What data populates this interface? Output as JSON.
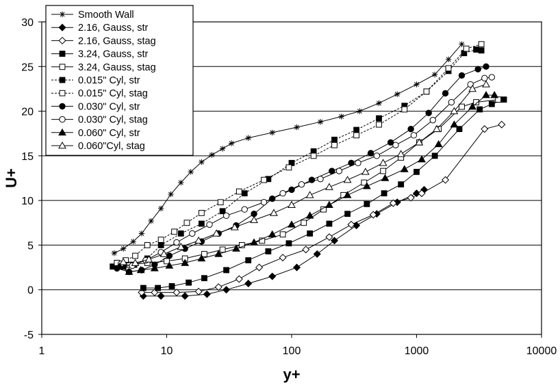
{
  "chart_data": {
    "type": "scatter",
    "title": "",
    "xlabel": "y+",
    "ylabel": "U+",
    "xscale": "log",
    "xlim": [
      1,
      10000
    ],
    "ylim": [
      -5,
      30
    ],
    "x_ticks": [
      "1",
      "10",
      "100",
      "1000",
      "10000"
    ],
    "y_ticks": [
      "-5",
      "0",
      "5",
      "10",
      "15",
      "20",
      "25",
      "30"
    ],
    "grid": "horizontal",
    "legend_position": "top-left",
    "series": [
      {
        "name": "Smooth Wall",
        "marker": "star",
        "line": "solid",
        "x": [
          3.8,
          4.5,
          5.4,
          6.3,
          7.5,
          9,
          10.8,
          13,
          15.6,
          19,
          23,
          28,
          33,
          45,
          70,
          110,
          170,
          250,
          350,
          500,
          700,
          1000,
          1400,
          1800,
          2300
        ],
        "y": [
          4.1,
          4.6,
          5.4,
          6.3,
          7.7,
          9.1,
          10.7,
          12.0,
          13.2,
          14.3,
          15.1,
          15.8,
          16.4,
          17.0,
          17.6,
          18.2,
          18.8,
          19.4,
          20.0,
          20.9,
          21.9,
          23.0,
          24.1,
          25.8,
          27.5
        ]
      },
      {
        "name": "2.16, Gauss, str",
        "marker": "diamond",
        "fill": true,
        "line": "solid",
        "x": [
          6.5,
          9,
          14,
          21,
          30,
          45,
          70,
          110,
          160,
          220,
          330,
          480,
          700,
          1000,
          1150
        ],
        "y": [
          -0.7,
          -0.7,
          -0.7,
          -0.5,
          0,
          0.7,
          1.5,
          2.5,
          4.0,
          5.5,
          7.2,
          8.5,
          9.8,
          10.8,
          11.2
        ]
      },
      {
        "name": "2.16, Gauss, stag",
        "marker": "diamond",
        "fill": false,
        "line": "solid",
        "x": [
          6.3,
          8,
          12,
          18,
          26,
          38,
          55,
          85,
          130,
          200,
          300,
          450,
          650,
          900,
          1100,
          1700,
          3500,
          4800
        ],
        "y": [
          -0.3,
          -0.3,
          -0.3,
          -0.2,
          0.3,
          1.2,
          2.5,
          3.6,
          4.5,
          5.9,
          7.3,
          8.4,
          9.7,
          10.3,
          10.8,
          12.3,
          18.0,
          18.5
        ]
      },
      {
        "name": "3.24, Gauss, str",
        "marker": "square",
        "fill": true,
        "line": "solid",
        "x": [
          6.5,
          8.5,
          11,
          15,
          20,
          30,
          45,
          65,
          95,
          140,
          200,
          280,
          400,
          550,
          750,
          1000,
          1400,
          2200,
          3200,
          4000,
          5000
        ],
        "y": [
          0.2,
          0.2,
          0.4,
          0.8,
          1.3,
          2.2,
          3.3,
          4.3,
          5.2,
          6.3,
          7.4,
          8.5,
          9.6,
          10.8,
          11.8,
          13.2,
          15.0,
          18.0,
          20.2,
          20.8,
          21.3
        ]
      },
      {
        "name": "3.24, Gauss, stag",
        "marker": "square",
        "fill": false,
        "line": "solid",
        "x": [
          4,
          5,
          7,
          10,
          14,
          20,
          28,
          40,
          58,
          85,
          125,
          180,
          260,
          380,
          540,
          750,
          1050,
          1500,
          2300,
          3000,
          4500
        ],
        "y": [
          3.0,
          2.8,
          3.0,
          3.2,
          3.5,
          4.0,
          4.5,
          5.0,
          5.5,
          6.2,
          7.5,
          9.0,
          10.6,
          12.0,
          13.3,
          14.8,
          16.5,
          18.0,
          20.5,
          21.0,
          21.3
        ]
      },
      {
        "name": "0.015\" Cyl, str",
        "marker": "square",
        "fill": true,
        "line": "dotted",
        "x": [
          3.7,
          4.5,
          5.5,
          7,
          9,
          13,
          19,
          28,
          42,
          65,
          100,
          150,
          220,
          330,
          500,
          800,
          1200,
          1800,
          2400,
          3000,
          3300
        ],
        "y": [
          2.6,
          2.6,
          2.8,
          3.5,
          5.0,
          6.3,
          7.4,
          8.8,
          10.8,
          12.4,
          14.2,
          15.5,
          16.8,
          17.9,
          19.2,
          20.6,
          22.2,
          24.5,
          26.5,
          26.9,
          26.8
        ]
      },
      {
        "name": "0.015\" Cyl, stag",
        "marker": "square",
        "fill": false,
        "line": "dotted",
        "x": [
          4,
          4.7,
          5.6,
          7,
          9,
          11.5,
          14.5,
          19,
          27,
          38,
          60,
          95,
          150,
          220,
          330,
          500,
          800,
          1200,
          1800,
          2500,
          3300
        ],
        "y": [
          3.0,
          3.3,
          3.8,
          5.0,
          5.6,
          6.5,
          7.5,
          8.6,
          9.8,
          11.0,
          12.3,
          13.7,
          15.0,
          16.2,
          17.3,
          18.5,
          20.2,
          22.2,
          24.8,
          27.0,
          27.5
        ]
      },
      {
        "name": "0.030\" Cyl, str",
        "marker": "circle",
        "fill": true,
        "line": "solid",
        "x": [
          4,
          5,
          6.3,
          8,
          10.5,
          14,
          19,
          26,
          36,
          50,
          70,
          100,
          145,
          210,
          300,
          430,
          620,
          900,
          1250,
          1700,
          2300,
          3100,
          3600
        ],
        "y": [
          2.4,
          2.0,
          2.2,
          2.8,
          3.8,
          4.6,
          5.4,
          6.3,
          7.2,
          8.5,
          10.2,
          11.2,
          12.3,
          13.3,
          14.2,
          15.3,
          16.5,
          18.0,
          19.8,
          22.0,
          24.0,
          24.7,
          25.0
        ]
      },
      {
        "name": "0.030\" Cyl, stag",
        "marker": "circle",
        "fill": false,
        "line": "solid",
        "x": [
          4.3,
          5.3,
          6.8,
          9,
          12,
          16,
          22,
          30,
          42,
          60,
          85,
          120,
          170,
          240,
          340,
          480,
          680,
          950,
          1350,
          1900,
          2700,
          3500,
          4000
        ],
        "y": [
          2.9,
          2.7,
          3.3,
          4.2,
          5.3,
          6.3,
          7.3,
          8.3,
          9.0,
          9.8,
          10.8,
          11.8,
          12.4,
          13.3,
          14.2,
          15.0,
          16.2,
          17.3,
          19.0,
          21.0,
          23.0,
          23.7,
          23.8
        ]
      },
      {
        "name": "0.060\" Cyl, str",
        "marker": "triangle",
        "fill": true,
        "line": "solid",
        "x": [
          4.2,
          5,
          6.2,
          8,
          10.5,
          14,
          19,
          26,
          36,
          50,
          70,
          100,
          140,
          200,
          280,
          400,
          560,
          800,
          1100,
          1500,
          2000,
          2800,
          3600,
          4200
        ],
        "y": [
          2.6,
          2.0,
          2.2,
          2.4,
          2.7,
          3.0,
          3.5,
          4.0,
          4.6,
          5.3,
          6.2,
          7.3,
          8.3,
          9.5,
          10.6,
          11.6,
          12.5,
          13.5,
          14.6,
          16.3,
          18.5,
          20.5,
          21.8,
          21.8
        ]
      },
      {
        "name": "0.060\"Cyl, stag",
        "marker": "triangle",
        "fill": false,
        "line": "solid",
        "x": [
          4.5,
          5.6,
          7.2,
          9.5,
          13,
          18,
          25,
          35,
          50,
          72,
          100,
          140,
          200,
          280,
          390,
          540,
          750,
          1050,
          1450,
          2000,
          2800,
          3600
        ],
        "y": [
          3.1,
          3.0,
          3.4,
          4.0,
          4.8,
          5.5,
          6.3,
          7.0,
          7.8,
          8.6,
          9.5,
          10.6,
          11.5,
          12.3,
          13.2,
          14.2,
          15.2,
          16.5,
          18.0,
          20.0,
          22.5,
          23.0
        ]
      }
    ]
  }
}
